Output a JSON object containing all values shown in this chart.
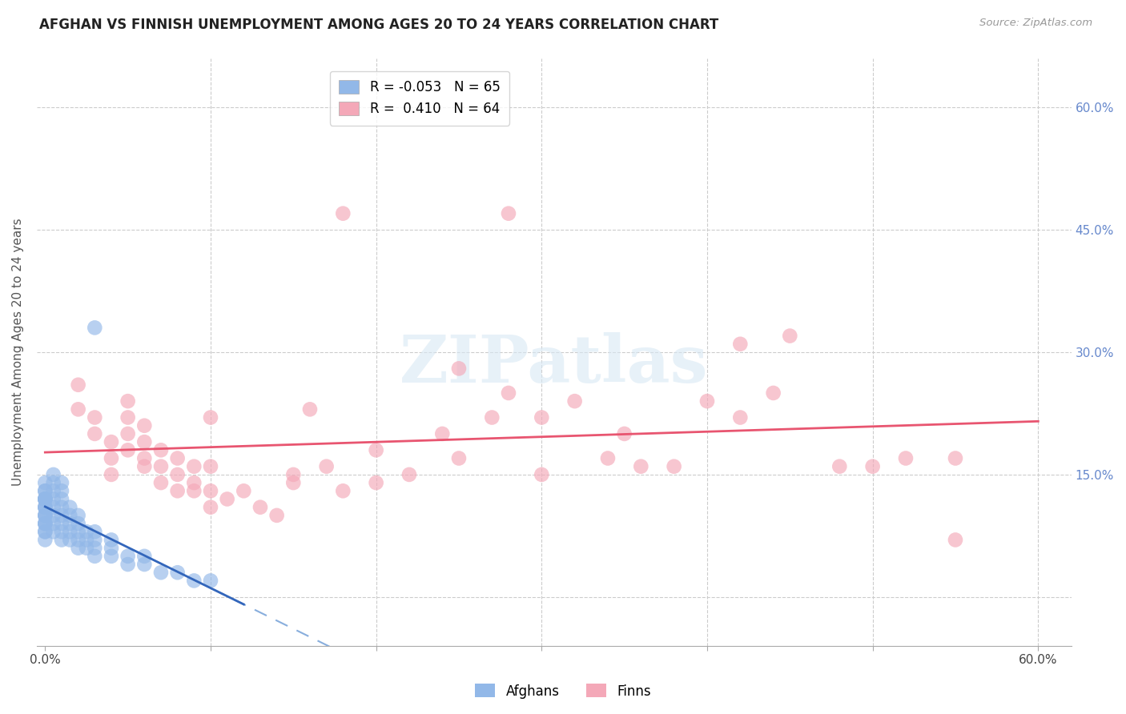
{
  "title": "AFGHAN VS FINNISH UNEMPLOYMENT AMONG AGES 20 TO 24 YEARS CORRELATION CHART",
  "source": "Source: ZipAtlas.com",
  "ylabel": "Unemployment Among Ages 20 to 24 years",
  "xlim": [
    -0.005,
    0.62
  ],
  "ylim": [
    -0.06,
    0.66
  ],
  "xtick_pos": [
    0.0,
    0.1,
    0.2,
    0.3,
    0.4,
    0.5,
    0.6
  ],
  "xtick_labels": [
    "0.0%",
    "",
    "",
    "",
    "",
    "",
    "60.0%"
  ],
  "ytick_pos": [
    0.0,
    0.15,
    0.3,
    0.45,
    0.6
  ],
  "ytick_labels_right": [
    "",
    "15.0%",
    "30.0%",
    "45.0%",
    "60.0%"
  ],
  "afghan_R": "-0.053",
  "afghan_N": "65",
  "finn_R": "0.410",
  "finn_N": "64",
  "afghan_color": "#92b8e8",
  "finn_color": "#f4a8b8",
  "afghan_line_color": "#3366bb",
  "afghan_dash_color": "#88aedd",
  "finn_line_color": "#e85570",
  "watermark_text": "ZIPatlas",
  "title_fontsize": 12,
  "legend_fontsize": 12,
  "axis_label_fontsize": 11,
  "tick_fontsize": 11,
  "right_tick_color": "#6688cc",
  "afghans_x": [
    0.0,
    0.0,
    0.0,
    0.0,
    0.0,
    0.0,
    0.0,
    0.0,
    0.0,
    0.0,
    0.0,
    0.0,
    0.0,
    0.0,
    0.0,
    0.0,
    0.0,
    0.0,
    0.0,
    0.0,
    0.005,
    0.005,
    0.005,
    0.005,
    0.005,
    0.005,
    0.005,
    0.005,
    0.01,
    0.01,
    0.01,
    0.01,
    0.01,
    0.01,
    0.01,
    0.01,
    0.015,
    0.015,
    0.015,
    0.015,
    0.015,
    0.02,
    0.02,
    0.02,
    0.02,
    0.02,
    0.025,
    0.025,
    0.025,
    0.03,
    0.03,
    0.03,
    0.03,
    0.04,
    0.04,
    0.04,
    0.05,
    0.05,
    0.06,
    0.06,
    0.07,
    0.08,
    0.09,
    0.1,
    0.03
  ],
  "afghans_y": [
    0.07,
    0.08,
    0.09,
    0.1,
    0.1,
    0.11,
    0.11,
    0.12,
    0.12,
    0.12,
    0.12,
    0.13,
    0.13,
    0.14,
    0.08,
    0.09,
    0.09,
    0.1,
    0.11,
    0.12,
    0.08,
    0.09,
    0.1,
    0.11,
    0.12,
    0.13,
    0.14,
    0.15,
    0.07,
    0.08,
    0.09,
    0.1,
    0.11,
    0.12,
    0.13,
    0.14,
    0.07,
    0.08,
    0.09,
    0.1,
    0.11,
    0.06,
    0.07,
    0.08,
    0.09,
    0.1,
    0.06,
    0.07,
    0.08,
    0.05,
    0.06,
    0.07,
    0.08,
    0.05,
    0.06,
    0.07,
    0.04,
    0.05,
    0.04,
    0.05,
    0.03,
    0.03,
    0.02,
    0.02,
    0.33
  ],
  "finns_x": [
    0.02,
    0.02,
    0.03,
    0.03,
    0.04,
    0.04,
    0.04,
    0.05,
    0.05,
    0.05,
    0.05,
    0.06,
    0.06,
    0.06,
    0.06,
    0.07,
    0.07,
    0.07,
    0.08,
    0.08,
    0.08,
    0.09,
    0.09,
    0.09,
    0.1,
    0.1,
    0.1,
    0.11,
    0.12,
    0.13,
    0.14,
    0.15,
    0.16,
    0.17,
    0.18,
    0.2,
    0.22,
    0.24,
    0.25,
    0.27,
    0.3,
    0.32,
    0.34,
    0.36,
    0.38,
    0.4,
    0.42,
    0.44,
    0.48,
    0.52,
    0.18,
    0.28,
    0.45,
    0.55,
    0.3,
    0.25,
    0.1,
    0.15,
    0.2,
    0.28,
    0.35,
    0.42,
    0.5,
    0.55
  ],
  "finns_y": [
    0.26,
    0.23,
    0.22,
    0.2,
    0.19,
    0.17,
    0.15,
    0.18,
    0.2,
    0.22,
    0.24,
    0.16,
    0.17,
    0.19,
    0.21,
    0.14,
    0.16,
    0.18,
    0.13,
    0.15,
    0.17,
    0.13,
    0.14,
    0.16,
    0.11,
    0.13,
    0.22,
    0.12,
    0.13,
    0.11,
    0.1,
    0.14,
    0.23,
    0.16,
    0.13,
    0.14,
    0.15,
    0.2,
    0.17,
    0.22,
    0.22,
    0.24,
    0.17,
    0.16,
    0.16,
    0.24,
    0.22,
    0.25,
    0.16,
    0.17,
    0.47,
    0.47,
    0.32,
    0.07,
    0.15,
    0.28,
    0.16,
    0.15,
    0.18,
    0.25,
    0.2,
    0.31,
    0.16,
    0.17
  ]
}
